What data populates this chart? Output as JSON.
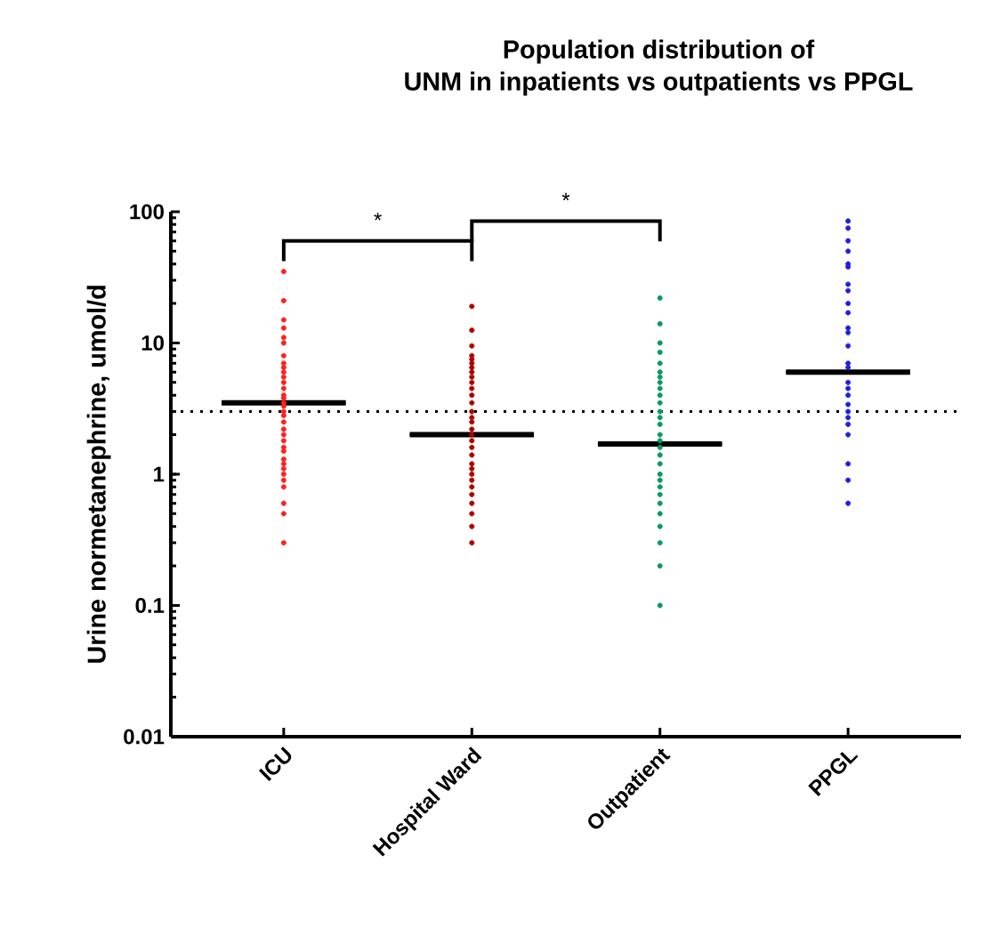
{
  "chart_data": {
    "type": "scatter",
    "title": "Population distribution of\nUNM in inpatients vs outpatients vs PPGL",
    "ylabel": "Urine normetanephrine, umol/d",
    "categories": [
      "ICU",
      "Hospital Ward",
      "Outpatient",
      "PPGL"
    ],
    "log": "y",
    "ylim": [
      0.01,
      100
    ],
    "yticks": [
      0.01,
      0.1,
      1,
      10,
      100
    ],
    "marker": "circle",
    "series": [
      {
        "type": "box",
        "color": "#000000",
        "boxes": [
          {
            "low": 3.5,
            "q1": 3.5,
            "median": 3.5,
            "q3": 3.5,
            "high": 3.5
          },
          {
            "low": 2.0,
            "q1": 2.0,
            "median": 2.0,
            "q3": 2.0,
            "high": 2.0
          },
          {
            "low": 1.7,
            "q1": 1.7,
            "median": 1.7,
            "q3": 1.7,
            "high": 1.7
          },
          {
            "low": 6.0,
            "q1": 6.0,
            "median": 6.0,
            "q3": 6.0,
            "high": 6.0
          }
        ]
      },
      {
        "color": "#ff2020",
        "x": [
          "ICU",
          "ICU",
          "ICU",
          "ICU",
          "ICU",
          "ICU",
          "ICU",
          "ICU",
          "ICU",
          "ICU",
          "ICU",
          "ICU",
          "ICU",
          "ICU",
          "ICU",
          "ICU",
          "ICU",
          "ICU",
          "ICU",
          "ICU",
          "ICU",
          "ICU",
          "ICU",
          "ICU",
          "ICU",
          "ICU",
          "ICU",
          "ICU",
          "ICU",
          "ICU",
          "ICU",
          "ICU",
          "ICU",
          "ICU"
        ],
        "values": [
          35,
          21,
          15,
          13,
          11,
          10,
          8,
          7,
          6.5,
          6,
          5.5,
          5,
          4.5,
          4,
          3.8,
          3.5,
          3.3,
          3,
          2.8,
          2.5,
          2.2,
          2,
          1.8,
          1.6,
          1.5,
          1.3,
          1.2,
          1.1,
          1,
          0.9,
          0.8,
          0.6,
          0.5,
          0.3
        ]
      },
      {
        "color": "#b00000",
        "x": [
          "Hospital Ward",
          "Hospital Ward",
          "Hospital Ward",
          "Hospital Ward",
          "Hospital Ward",
          "Hospital Ward",
          "Hospital Ward",
          "Hospital Ward",
          "Hospital Ward",
          "Hospital Ward",
          "Hospital Ward",
          "Hospital Ward",
          "Hospital Ward",
          "Hospital Ward",
          "Hospital Ward",
          "Hospital Ward",
          "Hospital Ward",
          "Hospital Ward",
          "Hospital Ward",
          "Hospital Ward",
          "Hospital Ward",
          "Hospital Ward",
          "Hospital Ward",
          "Hospital Ward",
          "Hospital Ward",
          "Hospital Ward",
          "Hospital Ward",
          "Hospital Ward",
          "Hospital Ward",
          "Hospital Ward",
          "Hospital Ward"
        ],
        "values": [
          19,
          12.5,
          9.5,
          8,
          7.5,
          7,
          6.5,
          6,
          5.5,
          5,
          4.5,
          4,
          3.5,
          3,
          2.7,
          2.5,
          2.2,
          2,
          1.8,
          1.6,
          1.4,
          1.2,
          1.1,
          1,
          0.9,
          0.8,
          0.7,
          0.6,
          0.5,
          0.4,
          0.3
        ]
      },
      {
        "color": "#0a9a60",
        "x": [
          "Outpatient",
          "Outpatient",
          "Outpatient",
          "Outpatient",
          "Outpatient",
          "Outpatient",
          "Outpatient",
          "Outpatient",
          "Outpatient",
          "Outpatient",
          "Outpatient",
          "Outpatient",
          "Outpatient",
          "Outpatient",
          "Outpatient",
          "Outpatient",
          "Outpatient",
          "Outpatient",
          "Outpatient",
          "Outpatient",
          "Outpatient",
          "Outpatient",
          "Outpatient",
          "Outpatient",
          "Outpatient",
          "Outpatient",
          "Outpatient",
          "Outpatient",
          "Outpatient"
        ],
        "values": [
          22,
          14,
          10,
          8.5,
          7,
          6,
          5.5,
          5,
          4.5,
          4,
          3.5,
          3,
          2.7,
          2.4,
          2,
          1.8,
          1.6,
          1.4,
          1.2,
          1,
          0.9,
          0.8,
          0.7,
          0.6,
          0.5,
          0.4,
          0.3,
          0.2,
          0.1
        ]
      },
      {
        "color": "#2020e0",
        "x": [
          "PPGL",
          "PPGL",
          "PPGL",
          "PPGL",
          "PPGL",
          "PPGL",
          "PPGL",
          "PPGL",
          "PPGL",
          "PPGL",
          "PPGL",
          "PPGL",
          "PPGL",
          "PPGL",
          "PPGL",
          "PPGL",
          "PPGL",
          "PPGL",
          "PPGL",
          "PPGL",
          "PPGL",
          "PPGL",
          "PPGL",
          "PPGL",
          "PPGL",
          "PPGL"
        ],
        "values": [
          85,
          75,
          60,
          50,
          40,
          38,
          28,
          25,
          20,
          17,
          13,
          12,
          9.5,
          7,
          6.5,
          5,
          4.5,
          4,
          3.4,
          3,
          2.7,
          2.4,
          2,
          1.2,
          0.9,
          0.6
        ]
      }
    ],
    "ref_lines": [
      {
        "axis": "y",
        "value": 3,
        "line_style": "dotted",
        "color": "#000000"
      }
    ],
    "annotations": [
      "*",
      "*"
    ]
  }
}
